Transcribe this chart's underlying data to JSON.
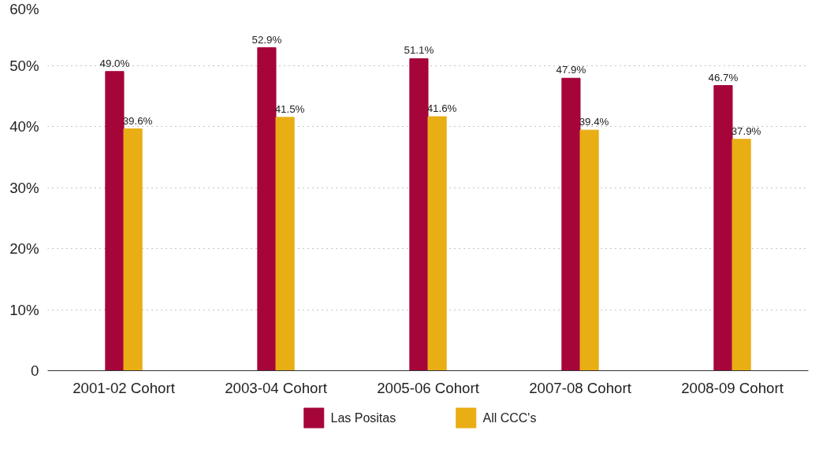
{
  "chart_data": {
    "type": "bar",
    "categories": [
      "2001-02 Cohort",
      "2003-04 Cohort",
      "2005-06 Cohort",
      "2007-08 Cohort",
      "2008-09 Cohort"
    ],
    "series": [
      {
        "name": "Las Positas",
        "color": "#a6053a",
        "values": [
          49.0,
          52.9,
          51.1,
          47.9,
          46.7
        ],
        "value_labels": [
          "49.0%",
          "52.9%",
          "51.1%",
          "47.9%",
          "46.7%"
        ]
      },
      {
        "name": "All CCC's",
        "color": "#e8ae14",
        "values": [
          39.6,
          41.5,
          41.6,
          39.4,
          37.9
        ],
        "value_labels": [
          "39.6%",
          "41.5%",
          "41.6%",
          "39.4%",
          "37.9%"
        ]
      }
    ],
    "ylim": [
      0,
      60
    ],
    "yticks": [
      0,
      {
        "value": 10,
        "label": "10%"
      },
      {
        "value": 20,
        "label": "20%"
      },
      {
        "value": 30,
        "label": "30%"
      },
      {
        "value": 40,
        "label": "40%"
      },
      {
        "value": 50,
        "label": "50%"
      },
      {
        "value": 60,
        "label": "60%"
      }
    ],
    "grid": "y",
    "legend": "bottom"
  }
}
